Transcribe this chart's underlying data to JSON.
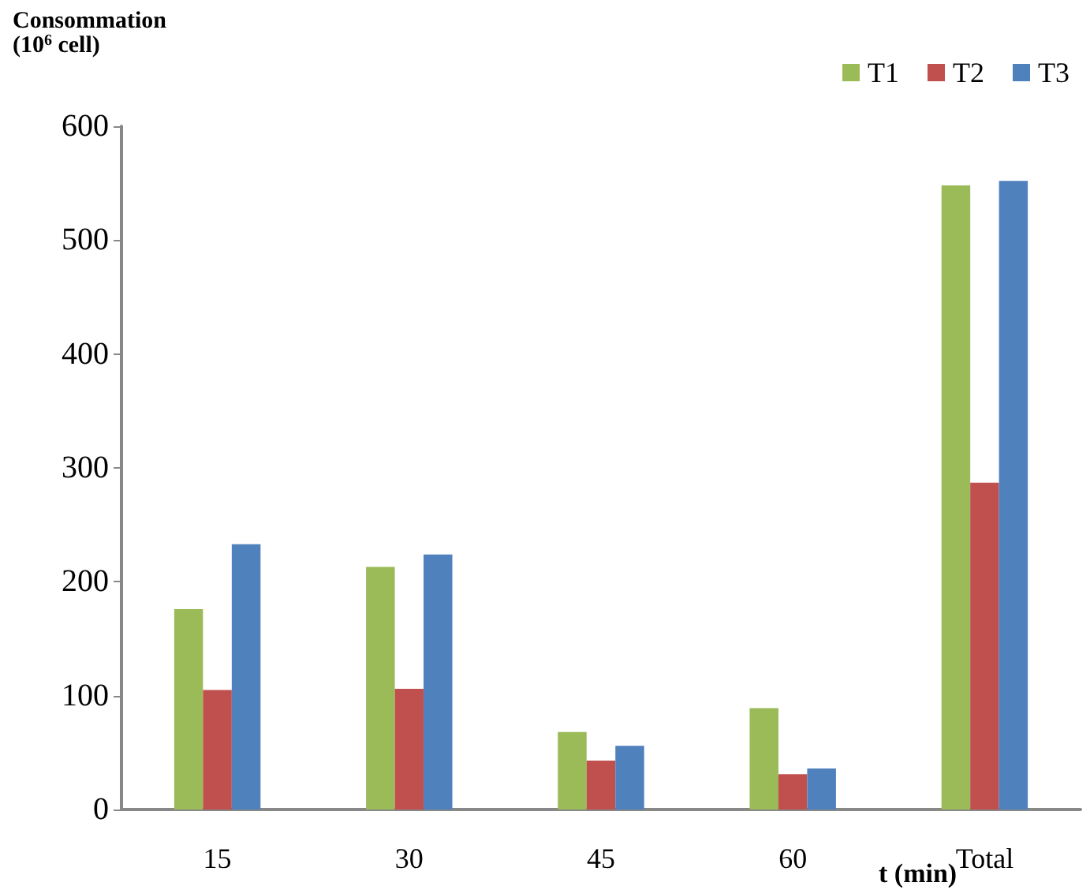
{
  "chart_data": {
    "type": "bar",
    "ylabel": "Consommation\n(10$^{6}$ cell)",
    "xlabel": "t (min)",
    "categories": [
      "15",
      "30",
      "45",
      "60",
      "Total"
    ],
    "series": [
      {
        "name": "T1",
        "color": "#9bbb59",
        "values": [
          176,
          213,
          68,
          89,
          548
        ]
      },
      {
        "name": "T2",
        "color": "#c0504d",
        "values": [
          105,
          106,
          43,
          31,
          287
        ]
      },
      {
        "name": "T3",
        "color": "#4f81bd",
        "values": [
          233,
          224,
          56,
          36,
          552
        ]
      }
    ],
    "ylim": [
      0,
      600
    ],
    "yticks": [
      0,
      100,
      200,
      300,
      400,
      500,
      600
    ],
    "grid": false,
    "legend": "top right"
  }
}
